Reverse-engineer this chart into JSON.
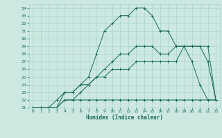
{
  "xlabel": "Humidex (Indice chaleur)",
  "bg_color": "#cce8e0",
  "line_color": "#1a6b5a",
  "grid_color": "#aad4cc",
  "xlim": [
    -0.5,
    23.5
  ],
  "ylim": [
    21,
    34.5
  ],
  "xticks": [
    0,
    1,
    2,
    3,
    4,
    5,
    6,
    7,
    8,
    9,
    10,
    11,
    12,
    13,
    14,
    15,
    16,
    17,
    18,
    19,
    20,
    21,
    22,
    23
  ],
  "yticks": [
    21,
    22,
    23,
    24,
    25,
    26,
    27,
    28,
    29,
    30,
    31,
    32,
    33,
    34
  ],
  "lines": [
    {
      "x": [
        0,
        1,
        2,
        3,
        4,
        5,
        6,
        7,
        8,
        9,
        10,
        11,
        12,
        13,
        14,
        15,
        16,
        17,
        18,
        19,
        20,
        21,
        22,
        23
      ],
      "y": [
        21,
        21,
        21,
        21,
        23,
        23,
        24,
        25,
        28,
        31,
        32,
        33,
        33,
        34,
        34,
        33,
        31,
        31,
        29,
        29,
        27,
        24,
        22,
        22
      ]
    },
    {
      "x": [
        0,
        1,
        2,
        3,
        4,
        5,
        6,
        7,
        8,
        9,
        10,
        11,
        12,
        13,
        14,
        15,
        16,
        17,
        18,
        19,
        20,
        21,
        22,
        23
      ],
      "y": [
        21,
        21,
        21,
        21,
        22,
        22,
        23,
        24,
        25,
        26,
        27,
        28,
        28,
        29,
        29,
        29,
        28,
        28,
        29,
        29,
        29,
        29,
        27,
        22
      ]
    },
    {
      "x": [
        0,
        1,
        2,
        3,
        4,
        5,
        6,
        7,
        8,
        9,
        10,
        11,
        12,
        13,
        14,
        15,
        16,
        17,
        18,
        19,
        20,
        21,
        22,
        23
      ],
      "y": [
        21,
        21,
        21,
        22,
        23,
        23,
        24,
        24,
        25,
        25,
        26,
        26,
        26,
        27,
        27,
        27,
        27,
        27,
        27,
        29,
        29,
        29,
        29,
        22
      ]
    },
    {
      "x": [
        0,
        1,
        2,
        3,
        4,
        5,
        6,
        7,
        8,
        9,
        10,
        11,
        12,
        13,
        14,
        15,
        16,
        17,
        18,
        19,
        20,
        21,
        22,
        23
      ],
      "y": [
        21,
        21,
        21,
        21,
        22,
        22,
        22,
        22,
        22,
        22,
        22,
        22,
        22,
        22,
        22,
        22,
        22,
        22,
        22,
        22,
        22,
        22,
        22,
        22
      ]
    }
  ]
}
